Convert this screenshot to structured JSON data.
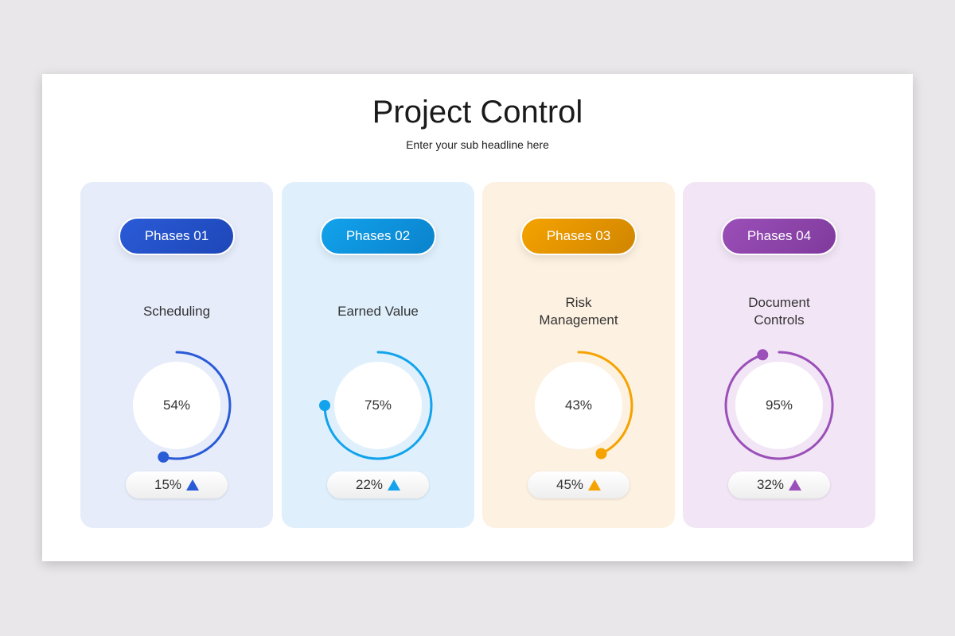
{
  "title": "Project Control",
  "subtitle": "Enter your sub headline here",
  "cards": [
    {
      "phase": "Phases 01",
      "label": "Scheduling",
      "progress": "54%",
      "progress_value": 54,
      "change": "15%",
      "trend": "up",
      "color": "#2a5bd7",
      "color2": "#1e47b8",
      "bg": "#e6ecfa"
    },
    {
      "phase": "Phases 02",
      "label": "Earned Value",
      "progress": "75%",
      "progress_value": 75,
      "change": "22%",
      "trend": "up",
      "color": "#12a3ec",
      "color2": "#0a82cc",
      "bg": "#dff0fc"
    },
    {
      "phase": "Phases 03",
      "label": "Risk\nManagement",
      "progress": "43%",
      "progress_value": 43,
      "change": "45%",
      "trend": "up",
      "color": "#f5a300",
      "color2": "#d08500",
      "bg": "#fdf1e1"
    },
    {
      "phase": "Phases 04",
      "label": "Document\nControls",
      "progress": "95%",
      "progress_value": 95,
      "change": "32%",
      "trend": "up",
      "color": "#9b4fb8",
      "color2": "#7f3a9c",
      "bg": "#f2e6f6"
    }
  ]
}
